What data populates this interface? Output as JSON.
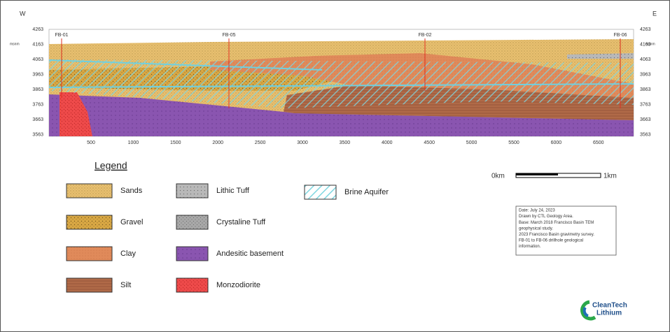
{
  "header": {
    "west": "W",
    "east": "E"
  },
  "section": {
    "elevation_unit": "msnm",
    "y_labels": [
      4263,
      4163,
      4063,
      3963,
      3863,
      3763,
      3663,
      3563
    ],
    "x_labels": [
      500,
      1000,
      1500,
      2000,
      2500,
      3000,
      3500,
      4000,
      4500,
      5000,
      5500,
      6000,
      6500
    ],
    "drillholes": [
      "FB-01",
      "FB-05",
      "FB-02",
      "FB-06"
    ]
  },
  "legend": {
    "title": "Legend",
    "items": [
      "Sands",
      "Gravel",
      "Clay",
      "Silt",
      "Lithic Tuff",
      "Crystaline Tuff",
      "Andesitic basement",
      "Monzodiorite",
      "Brine Aquifer"
    ]
  },
  "scale_bar": {
    "start": "0km",
    "end": "1km"
  },
  "notes": [
    "Date: July 24, 2023",
    "Drawn by CTL Geology Area.",
    "Base: March 2018 Francisco Basin TEM",
    "geophysical study.",
    "2023 Francisco Basin gravimetry survey.",
    "FB-01 to FB-06 drillhole geological",
    "information."
  ],
  "logo": {
    "line1": "CleanTech",
    "line2": "Lithium"
  }
}
